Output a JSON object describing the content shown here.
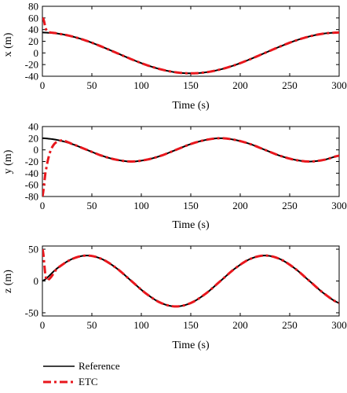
{
  "chart_data": [
    {
      "type": "line",
      "xlabel": "Time (s)",
      "ylabel": "x (m)",
      "xlim": [
        0,
        300
      ],
      "ylim": [
        -40,
        80
      ],
      "xticks": [
        0,
        50,
        100,
        150,
        200,
        250,
        300
      ],
      "yticks": [
        80,
        60,
        40,
        20,
        0,
        -20,
        -40
      ],
      "grid": false,
      "series": [
        {
          "name": "Reference",
          "color": "#000000",
          "x": [
            0,
            15,
            30,
            45,
            60,
            75,
            90,
            105,
            120,
            135,
            150,
            165,
            180,
            195,
            210,
            225,
            240,
            255,
            270,
            285,
            300
          ],
          "y": [
            35,
            33.3,
            28.3,
            20.6,
            10.8,
            0,
            -10.8,
            -20.6,
            -28.3,
            -33.3,
            -35,
            -33.3,
            -28.3,
            -20.6,
            -10.8,
            0,
            10.8,
            20.6,
            28.3,
            33.3,
            35
          ]
        },
        {
          "name": "ETC",
          "color": "#e8171d",
          "x": [
            0,
            1,
            2,
            3,
            5,
            8,
            15,
            30,
            45,
            60,
            75,
            90,
            105,
            120,
            135,
            150,
            165,
            180,
            195,
            210,
            225,
            240,
            255,
            270,
            285,
            300
          ],
          "y": [
            60,
            58,
            52,
            43,
            37,
            35,
            33.3,
            28.3,
            20.6,
            10.8,
            0,
            -10.8,
            -20.6,
            -28.3,
            -33.3,
            -35,
            -33.3,
            -28.3,
            -20.6,
            -10.8,
            0,
            10.8,
            20.6,
            28.3,
            33.3,
            35
          ]
        }
      ]
    },
    {
      "type": "line",
      "xlabel": "Time (s)",
      "ylabel": "y (m)",
      "xlim": [
        0,
        300
      ],
      "ylim": [
        -80,
        40
      ],
      "xticks": [
        0,
        50,
        100,
        150,
        200,
        250,
        300
      ],
      "yticks": [
        40,
        20,
        0,
        -20,
        -40,
        -60,
        -80
      ],
      "grid": false,
      "series": [
        {
          "name": "Reference",
          "color": "#000000",
          "x": [
            0,
            15,
            30,
            45,
            60,
            75,
            90,
            105,
            120,
            135,
            150,
            165,
            180,
            195,
            210,
            225,
            240,
            255,
            270,
            285,
            300
          ],
          "y": [
            20,
            17,
            10,
            0,
            -10,
            -17,
            -20,
            -17,
            -10,
            0,
            10,
            17,
            20,
            17,
            10,
            0,
            -10,
            -17,
            -20,
            -17,
            -10
          ]
        },
        {
          "name": "ETC",
          "color": "#e8171d",
          "x": [
            0,
            1,
            2,
            3,
            5,
            7,
            9,
            12,
            15,
            20,
            30,
            45,
            60,
            75,
            90,
            105,
            120,
            135,
            150,
            165,
            180,
            195,
            210,
            225,
            240,
            255,
            270,
            285,
            300
          ],
          "y": [
            -80,
            -70,
            -55,
            -40,
            -22,
            -8,
            2,
            10,
            14,
            16,
            10,
            0,
            -10,
            -17,
            -20,
            -17,
            -10,
            0,
            10,
            17,
            20,
            17,
            10,
            0,
            -10,
            -17,
            -20,
            -17,
            -10
          ]
        }
      ]
    },
    {
      "type": "line",
      "xlabel": "Time (s)",
      "ylabel": "z (m)",
      "xlim": [
        0,
        300
      ],
      "ylim": [
        -55,
        55
      ],
      "xticks": [
        0,
        50,
        100,
        150,
        200,
        250,
        300
      ],
      "yticks": [
        50,
        0,
        -50
      ],
      "grid": false,
      "series": [
        {
          "name": "Reference",
          "color": "#000000",
          "x": [
            0,
            15,
            30,
            45,
            60,
            75,
            90,
            105,
            120,
            135,
            150,
            165,
            180,
            195,
            210,
            225,
            240,
            255,
            270,
            285,
            300
          ],
          "y": [
            0,
            20,
            34.6,
            40,
            34.6,
            20,
            0,
            -20,
            -34.6,
            -40,
            -34.6,
            -20,
            0,
            20,
            34.6,
            40,
            34.6,
            20,
            0,
            -20,
            -34.6
          ]
        },
        {
          "name": "ETC",
          "color": "#e8171d",
          "x": [
            0,
            1,
            2,
            3,
            4,
            6,
            15,
            30,
            45,
            60,
            75,
            90,
            105,
            120,
            135,
            150,
            165,
            180,
            195,
            210,
            225,
            240,
            255,
            270,
            285,
            300
          ],
          "y": [
            50,
            42,
            25,
            10,
            3,
            2,
            20,
            34.6,
            40,
            34.6,
            20,
            0,
            -20,
            -34.6,
            -40,
            -34.6,
            -20,
            0,
            20,
            34.6,
            40,
            34.6,
            20,
            0,
            -20,
            -34.6
          ]
        }
      ]
    }
  ],
  "legend": {
    "placement": "bottom-left",
    "items": [
      {
        "label": "Reference",
        "color": "#000000",
        "style": "solid"
      },
      {
        "label": "ETC",
        "color": "#e8171d",
        "style": "dash-dot"
      }
    ]
  }
}
